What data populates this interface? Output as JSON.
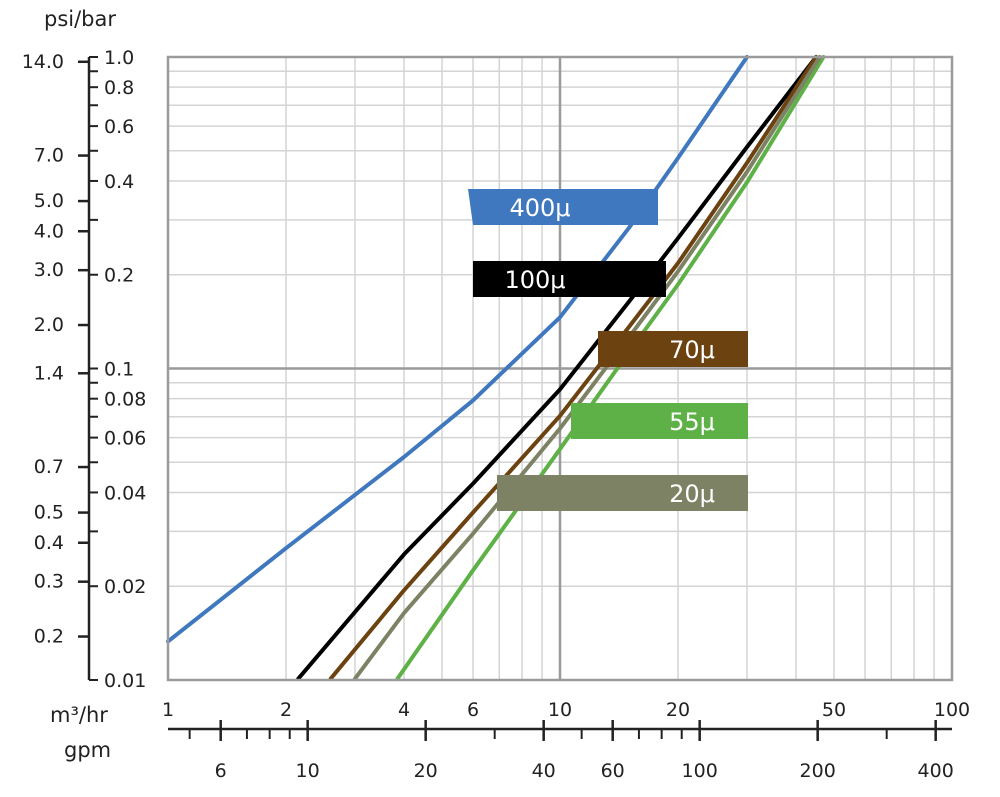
{
  "chart_data": {
    "type": "line",
    "x_scale": "log",
    "y_scale": "log",
    "xlim": [
      1,
      100
    ],
    "ylim": [
      0.01,
      1.0
    ],
    "grid": true,
    "y_unit_label": "psi/bar",
    "x_unit_label": "m³/hr",
    "x2_unit_label": "gpm",
    "bar_ticks": [
      {
        "value": 1.0,
        "label": "1.0"
      },
      {
        "value": 0.8,
        "label": "0.8"
      },
      {
        "value": 0.6,
        "label": "0.6"
      },
      {
        "value": 0.4,
        "label": "0.4"
      },
      {
        "value": 0.2,
        "label": "0.2"
      },
      {
        "value": 0.1,
        "label": "0.1"
      },
      {
        "value": 0.08,
        "label": "0.08"
      },
      {
        "value": 0.06,
        "label": "0.06"
      },
      {
        "value": 0.04,
        "label": "0.04"
      },
      {
        "value": 0.02,
        "label": "0.02"
      },
      {
        "value": 0.01,
        "label": "0.01"
      }
    ],
    "psi_ticks": [
      {
        "value": 14.0,
        "label": "14.0"
      },
      {
        "value": 7.0,
        "label": "7.0"
      },
      {
        "value": 5.0,
        "label": "5.0"
      },
      {
        "value": 4.0,
        "label": "4.0"
      },
      {
        "value": 3.0,
        "label": "3.0"
      },
      {
        "value": 2.0,
        "label": "2.0"
      },
      {
        "value": 1.4,
        "label": "1.4"
      },
      {
        "value": 0.7,
        "label": "0.7"
      },
      {
        "value": 0.5,
        "label": "0.5"
      },
      {
        "value": 0.4,
        "label": "0.4"
      },
      {
        "value": 0.3,
        "label": "0.3"
      },
      {
        "value": 0.2,
        "label": "0.2"
      }
    ],
    "x_ticks": [
      {
        "value": 1,
        "label": "1"
      },
      {
        "value": 2,
        "label": "2"
      },
      {
        "value": 4,
        "label": "4"
      },
      {
        "value": 6,
        "label": "6"
      },
      {
        "value": 10,
        "label": "10"
      },
      {
        "value": 20,
        "label": "20"
      },
      {
        "value": 50,
        "label": "50"
      },
      {
        "value": 100,
        "label": "100"
      }
    ],
    "gpm_ticks": [
      {
        "value": 6,
        "label": "6"
      },
      {
        "value": 10,
        "label": "10"
      },
      {
        "value": 20,
        "label": "20"
      },
      {
        "value": 40,
        "label": "40"
      },
      {
        "value": 60,
        "label": "60"
      },
      {
        "value": 100,
        "label": "100"
      },
      {
        "value": 200,
        "label": "200"
      },
      {
        "value": 400,
        "label": "400"
      }
    ],
    "series": [
      {
        "name": "400μ",
        "color": "#3f78be",
        "x": [
          1.0,
          2.0,
          4.0,
          6.0,
          10.0,
          15.0,
          20.0,
          30.0
        ],
        "y": [
          0.0133,
          0.0265,
          0.052,
          0.079,
          0.146,
          0.283,
          0.474,
          1.0
        ]
      },
      {
        "name": "100μ",
        "color": "#000000",
        "x": [
          2.15,
          4.0,
          6.0,
          10.0,
          15.0,
          20.0,
          30.0,
          45.0
        ],
        "y": [
          0.0101,
          0.0253,
          0.0427,
          0.0857,
          0.164,
          0.262,
          0.514,
          1.0
        ]
      },
      {
        "name": "70μ",
        "color": "#6b4210",
        "x": [
          2.6,
          4.0,
          6.0,
          10.0,
          15.0,
          20.0,
          30.0,
          45.0
        ],
        "y": [
          0.0101,
          0.0194,
          0.0345,
          0.0705,
          0.136,
          0.218,
          0.457,
          1.0
        ]
      },
      {
        "name": "55μ",
        "color": "#5eb146",
        "x": [
          3.85,
          6.0,
          10.0,
          15.0,
          20.0,
          30.0,
          47.0
        ],
        "y": [
          0.0101,
          0.0225,
          0.0551,
          0.113,
          0.186,
          0.396,
          1.0
        ]
      },
      {
        "name": "20μ",
        "color": "#7d8264",
        "x": [
          3.0,
          4.0,
          6.0,
          10.0,
          15.0,
          20.0,
          30.0,
          46.0
        ],
        "y": [
          0.0101,
          0.0164,
          0.0295,
          0.0642,
          0.126,
          0.205,
          0.428,
          1.0
        ]
      }
    ]
  }
}
